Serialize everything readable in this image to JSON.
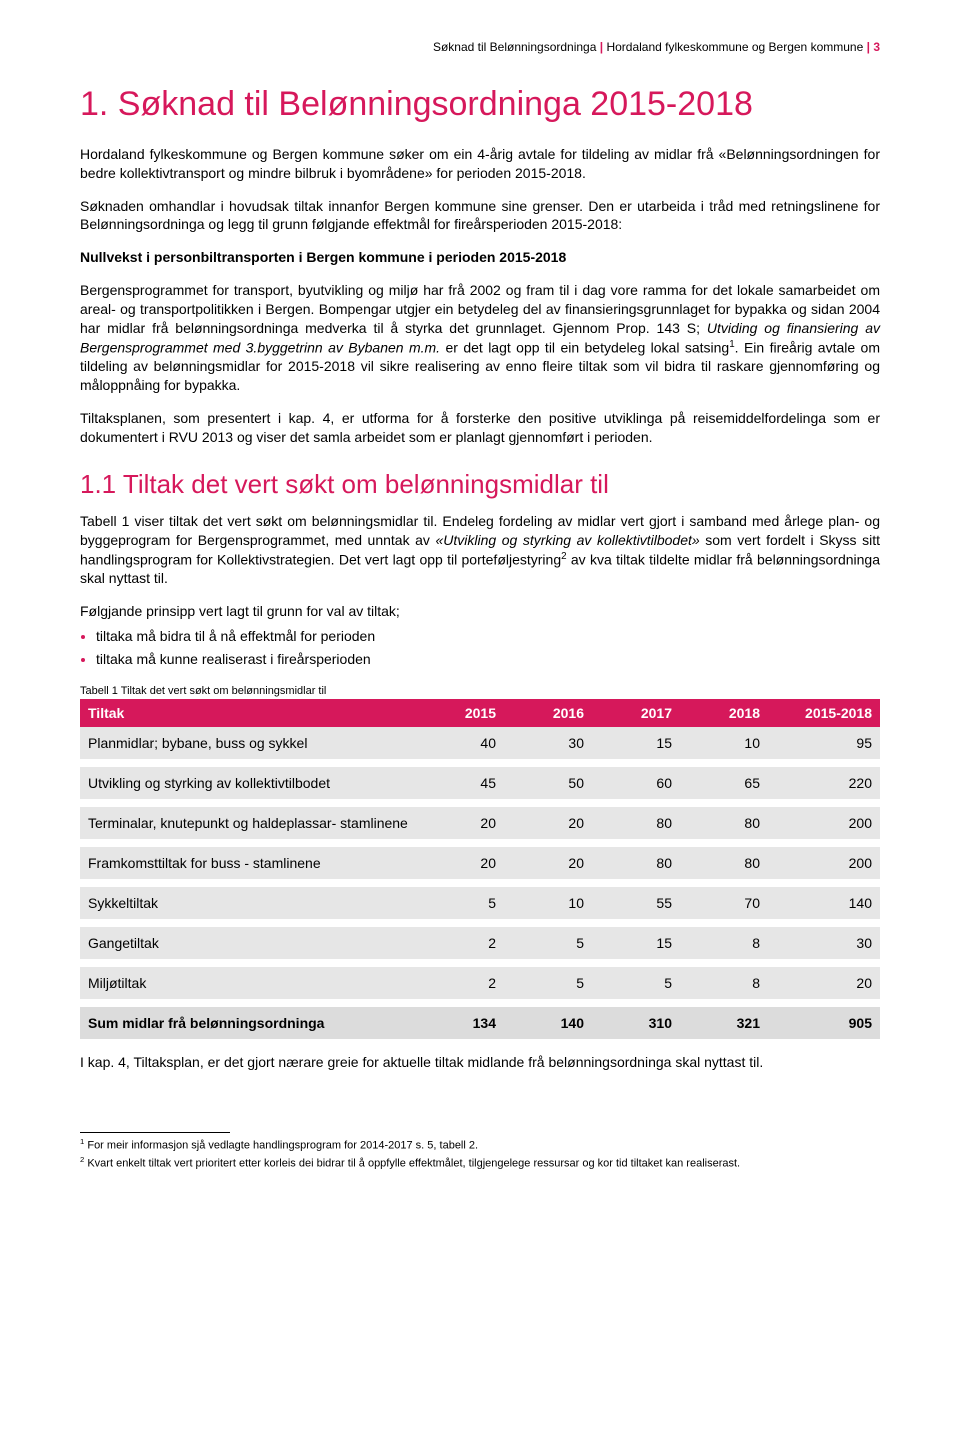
{
  "header": {
    "doc_title": "Søknad til Belønningsordninga",
    "org": "Hordaland fylkeskommune og Bergen kommune",
    "page_num": "3"
  },
  "title": "1. Søknad til Belønningsordninga 2015-2018",
  "para1": "Hordaland fylkeskommune og Bergen kommune søker om ein 4-årig avtale for tildeling av midlar frå «Belønningsordningen for bedre kollektivtransport og mindre bilbruk i byområdene» for perioden 2015-2018.",
  "para2": "Søknaden omhandlar i hovudsak tiltak innanfor Bergen kommune sine grenser. Den er utarbeida i tråd med retningslinene for Belønningsordninga og legg til grunn følgjande effektmål for fireårsperioden 2015-2018:",
  "bold_line": "Nullvekst i personbiltransporten i Bergen kommune i perioden 2015-2018",
  "para3a": "Bergensprogrammet for transport, byutvikling og miljø har frå 2002 og fram til i dag vore ramma for det lokale samarbeidet om areal- og transportpolitikken i Bergen. Bompengar utgjer ein betydeleg del av finansieringsgrunnlaget for bypakka og sidan 2004 har midlar frå belønningsordninga medverka til å styrka det grunnlaget. Gjennom Prop. 143 S; ",
  "para3i": "Utviding og finansiering av Bergensprogrammet med 3.byggetrinn av Bybanen m.m.",
  "para3b": " er det lagt opp til ein betydeleg lokal satsing",
  "para3c": ". Ein fireårig avtale om tildeling av belønningsmidlar for 2015-2018 vil sikre realisering av enno fleire tiltak som vil bidra til raskare gjennomføring og måloppnåing for bypakka.",
  "para4": "Tiltaksplanen, som presentert i kap. 4, er utforma for å forsterke den positive utviklinga på reisemiddelfordelinga som er dokumentert i RVU 2013 og viser det samla arbeidet som er planlagt gjennomført i perioden.",
  "subtitle": "1.1 Tiltak det vert søkt om belønningsmidlar til",
  "para5a": "Tabell 1 viser tiltak det vert søkt om belønningsmidlar til. Endeleg fordeling av midlar vert gjort i samband med årlege plan- og byggeprogram for Bergensprogrammet, med unntak av ",
  "para5i": "«Utvikling og styrking av kollektivtilbodet»",
  "para5b": " som vert fordelt i Skyss sitt handlingsprogram for Kollektivstrategien. Det vert lagt opp til porteføljestyring",
  "para5c": " av kva tiltak tildelte midlar frå belønningsordninga skal nyttast til.",
  "para6": "Følgjande prinsipp vert lagt til grunn for val av tiltak;",
  "bullets": [
    "tiltaka må bidra til å nå effektmål for perioden",
    "tiltaka må kunne realiserast i fireårsperioden"
  ],
  "table_caption": "Tabell 1 Tiltak det vert søkt om belønningsmidlar til",
  "table": {
    "columns": [
      "Tiltak",
      "2015",
      "2016",
      "2017",
      "2018",
      "2015-2018"
    ],
    "col_widths": [
      "42%",
      "11%",
      "11%",
      "11%",
      "11%",
      "14%"
    ],
    "header_bg": "#d6185b",
    "header_color": "#ffffff",
    "row_bg": "#e6e6e6",
    "sum_bg": "#dcdcdc",
    "rows": [
      [
        "Planmidlar; bybane, buss og sykkel",
        "40",
        "30",
        "15",
        "10",
        "95"
      ],
      [
        "Utvikling og styrking av kollektivtilbodet",
        "45",
        "50",
        "60",
        "65",
        "220"
      ],
      [
        "Terminalar, knutepunkt og haldeplassar- stamlinene",
        "20",
        "20",
        "80",
        "80",
        "200"
      ],
      [
        "Framkomsttiltak for buss - stamlinene",
        "20",
        "20",
        "80",
        "80",
        "200"
      ],
      [
        "Sykkeltiltak",
        "5",
        "10",
        "55",
        "70",
        "140"
      ],
      [
        "Gangetiltak",
        "2",
        "5",
        "15",
        "8",
        "30"
      ],
      [
        "Miljøtiltak",
        "2",
        "5",
        "5",
        "8",
        "20"
      ]
    ],
    "sum_row": [
      "Sum midlar frå belønningsordninga",
      "134",
      "140",
      "310",
      "321",
      "905"
    ]
  },
  "closing": "I kap. 4, Tiltaksplan, er det gjort nærare greie for aktuelle tiltak midlande frå belønningsordninga skal nyttast til.",
  "footnotes": [
    "For meir informasjon sjå vedlagte handlingsprogram for 2014-2017 s. 5, tabell 2.",
    "Kvart enkelt tiltak vert prioritert etter korleis dei bidrar til å oppfylle effektmålet, tilgjengelege ressursar og kor tid tiltaket kan realiserast."
  ]
}
